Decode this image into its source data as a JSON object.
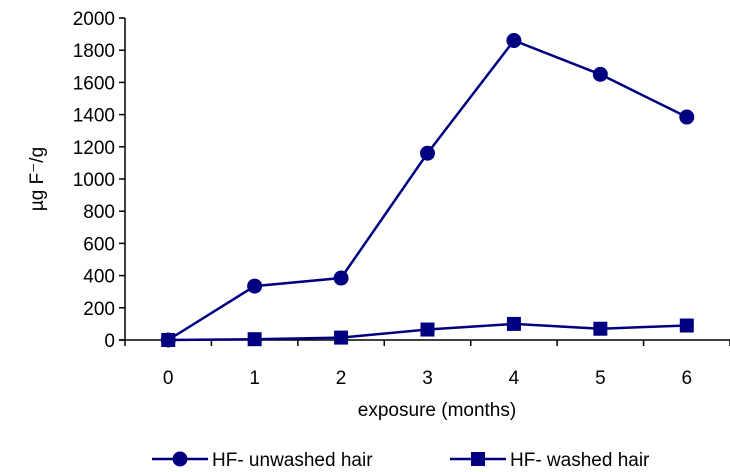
{
  "chart_data": {
    "type": "line",
    "title": "",
    "xlabel": "exposure (months)",
    "ylabel": "µg F⁻/g",
    "x": [
      0,
      1,
      2,
      3,
      4,
      5,
      6
    ],
    "ylim": [
      0,
      2000
    ],
    "yticks": [
      0,
      200,
      400,
      600,
      800,
      1000,
      1200,
      1400,
      1600,
      1800,
      2000
    ],
    "grid": false,
    "legend_position": "bottom",
    "series": [
      {
        "name": "HF- unwashed hair",
        "marker": "circle",
        "color": "#000080",
        "values": [
          0,
          335,
          385,
          1160,
          1860,
          1650,
          1385
        ]
      },
      {
        "name": "HF- washed hair",
        "marker": "square",
        "color": "#000080",
        "values": [
          0,
          5,
          15,
          65,
          100,
          70,
          90
        ]
      }
    ]
  }
}
